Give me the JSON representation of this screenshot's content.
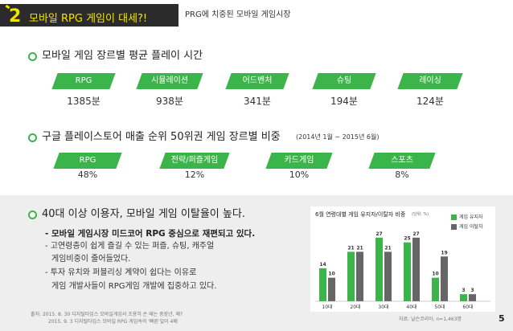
{
  "header": {
    "number": "2",
    "title": "모바일 RPG 게임이 대세?!",
    "subtitle": "PRG에 치중된 모바일 게임시장"
  },
  "section1": {
    "title": "모바일 게임 장르별 평균 플레이 시간",
    "items": [
      {
        "label": "RPG",
        "value": "1385분"
      },
      {
        "label": "시뮬레이션",
        "value": "938분"
      },
      {
        "label": "어드벤처",
        "value": "341분"
      },
      {
        "label": "슈팅",
        "value": "194분"
      },
      {
        "label": "레이싱",
        "value": "124분"
      }
    ]
  },
  "section2": {
    "title": "구글 플레이스토어 매출 순위 50위권 게임 장르별 비중",
    "note": "(2014년 1월 ~ 2015년 6월)",
    "items": [
      {
        "label": "RPG",
        "value": "48%"
      },
      {
        "label": "전략/퍼즐게임",
        "value": "12%"
      },
      {
        "label": "카드게임",
        "value": "10%"
      },
      {
        "label": "스포츠",
        "value": "8%"
      }
    ]
  },
  "section3": {
    "title": "40대 이상 이용자, 모바일 게임 이탈율이 높다.",
    "lead": "- 모바일 게임시장 미드코어 RPG 중심으로 재편되고 있다.",
    "lines": [
      "- 고연령층이 쉽게 즐길 수 있는 퍼즐, 슈팅, 캐주얼",
      "게임비중이 줄어들었다.",
      "- 투자 유치와 퍼블리싱 계약이 쉽다는 이유로",
      "게임 개발사들이 RPG게임 개발에 집중하고 있다."
    ]
  },
  "sources": [
    "출처: 2015. 8. 30 디지털타임스 모바일게임서 조용히 손 떼는 중장년, 왜?",
    "2015. 9. 3 디지털타임스 모바일 RPG 게임속의 '빠른'일이 4배"
  ],
  "page_number": "5",
  "chart_data": {
    "type": "bar",
    "title": "6월 연령대별 게임 유지자/이탈자 비중",
    "unit": "(단위: %)",
    "categories": [
      "10대",
      "20대",
      "30대",
      "40대",
      "50대",
      "60대"
    ],
    "series": [
      {
        "name": "게임 유지자",
        "values": [
          14,
          21,
          27,
          25,
          10,
          3
        ]
      },
      {
        "name": "게임 이탈자",
        "values": [
          10,
          21,
          21,
          27,
          19,
          3
        ]
      }
    ],
    "colors": [
      "#3bb54a",
      "#666666"
    ],
    "ylim": [
      0,
      30
    ],
    "grid": false,
    "legend": "top-right",
    "source": "자료: 날슨코리아, n=1,463명"
  }
}
